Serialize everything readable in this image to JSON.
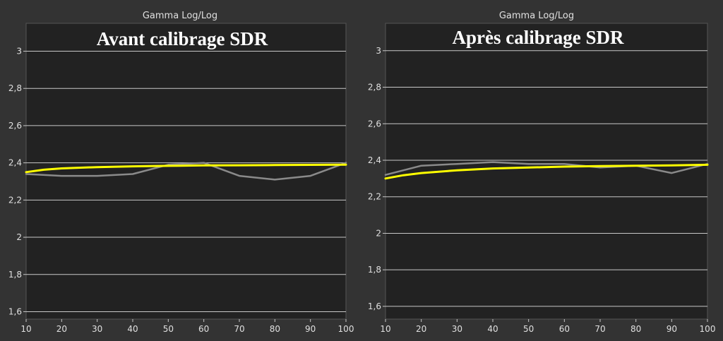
{
  "colors": {
    "background": "#333333",
    "plot_background": "#222222",
    "grid": "#c8c8c8",
    "text": "#e0e0e0",
    "target_series": "#ffff00",
    "measured_series": "#8a8a8a"
  },
  "chart_data": [
    {
      "type": "line",
      "title": "Gamma Log/Log",
      "overlay_title": "Avant calibrage SDR",
      "x": [
        10,
        20,
        30,
        40,
        50,
        60,
        70,
        80,
        90,
        100
      ],
      "xticks": [
        "10",
        "20",
        "30",
        "40",
        "50",
        "60",
        "70",
        "80",
        "90",
        "100"
      ],
      "yticks": [
        {
          "value": 1.6,
          "label": "1,6"
        },
        {
          "value": 1.8,
          "label": "1,8"
        },
        {
          "value": 2.0,
          "label": "2"
        },
        {
          "value": 2.2,
          "label": "2,2"
        },
        {
          "value": 2.4,
          "label": "2,4"
        },
        {
          "value": 2.6,
          "label": "2,6"
        },
        {
          "value": 2.8,
          "label": "2,8"
        },
        {
          "value": 3.0,
          "label": "3"
        }
      ],
      "xlim": [
        10,
        100
      ],
      "ylim": [
        1.56,
        3.15
      ],
      "grid": "horizontal",
      "series": [
        {
          "role": "target",
          "color": "#ffff00",
          "x": [
            10,
            15,
            20,
            30,
            40,
            50,
            60,
            70,
            80,
            90,
            100
          ],
          "y": [
            2.35,
            2.363,
            2.37,
            2.377,
            2.381,
            2.384,
            2.386,
            2.387,
            2.388,
            2.389,
            2.39
          ]
        },
        {
          "role": "measured",
          "color": "#8a8a8a",
          "x": [
            10,
            20,
            30,
            40,
            50,
            60,
            70,
            80,
            90,
            100
          ],
          "y": [
            2.34,
            2.33,
            2.33,
            2.34,
            2.39,
            2.4,
            2.33,
            2.31,
            2.33,
            2.4
          ]
        }
      ]
    },
    {
      "type": "line",
      "title": "Gamma Log/Log",
      "overlay_title": "Après calibrage SDR",
      "x": [
        10,
        20,
        30,
        40,
        50,
        60,
        70,
        80,
        90,
        100
      ],
      "xticks": [
        "10",
        "20",
        "30",
        "40",
        "50",
        "60",
        "70",
        "80",
        "90",
        "100"
      ],
      "yticks": [
        {
          "value": 1.6,
          "label": "1,6"
        },
        {
          "value": 1.8,
          "label": "1,8"
        },
        {
          "value": 2.0,
          "label": "2"
        },
        {
          "value": 2.2,
          "label": "2,2"
        },
        {
          "value": 2.4,
          "label": "2,4"
        },
        {
          "value": 2.6,
          "label": "2,6"
        },
        {
          "value": 2.8,
          "label": "2,8"
        },
        {
          "value": 3.0,
          "label": "3"
        }
      ],
      "xlim": [
        10,
        100
      ],
      "ylim": [
        1.53,
        3.15
      ],
      "grid": "horizontal",
      "series": [
        {
          "role": "target",
          "color": "#ffff00",
          "x": [
            10,
            15,
            20,
            30,
            40,
            50,
            60,
            70,
            80,
            90,
            100
          ],
          "y": [
            2.3,
            2.318,
            2.33,
            2.345,
            2.355,
            2.36,
            2.365,
            2.368,
            2.37,
            2.372,
            2.375
          ]
        },
        {
          "role": "measured",
          "color": "#8a8a8a",
          "x": [
            10,
            20,
            30,
            40,
            50,
            60,
            70,
            80,
            90,
            100
          ],
          "y": [
            2.32,
            2.37,
            2.38,
            2.39,
            2.38,
            2.38,
            2.36,
            2.37,
            2.33,
            2.38
          ]
        }
      ]
    }
  ]
}
